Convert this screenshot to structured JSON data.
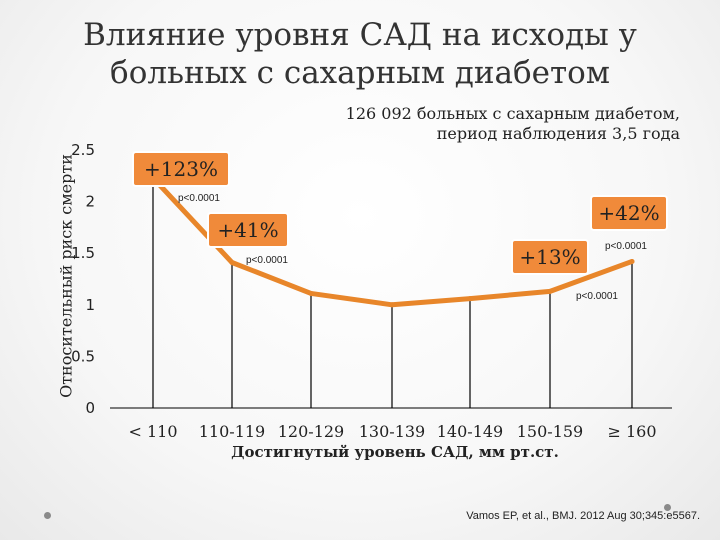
{
  "slide": {
    "title_line1": "Влияние уровня САД на исходы у",
    "title_line2": "больных с сахарным диабетом",
    "subtitle_line1": "126 092 больных с сахарным диабетом,",
    "subtitle_line2": "период наблюдения 3,5 года",
    "citation": "Vamos EP, et al., BMJ. 2012 Aug 30;345:e5567."
  },
  "chart_data": {
    "type": "line",
    "categories": [
      "< 110",
      "110-119",
      "120-129",
      "130-139",
      "140-149",
      "150-159",
      "≥ 160"
    ],
    "series": [
      {
        "values": [
          2.23,
          1.41,
          1.11,
          1.0,
          1.06,
          1.13,
          1.42
        ]
      }
    ],
    "xlabel": "Достигнутый уровень САД, мм рт.ст.",
    "ylabel": "Относительный риск смерти",
    "ylim": [
      0,
      2.5
    ],
    "yticks": [
      0,
      0.5,
      1,
      1.5,
      2,
      2.5
    ],
    "ytick_labels": [
      "0",
      "0.5",
      "1",
      "1.5",
      "2",
      "2.5"
    ],
    "drop_lines": true,
    "annotations": [
      {
        "category": "< 110",
        "text": "+123%",
        "p_value": "p<0.0001"
      },
      {
        "category": "110-119",
        "text": "+41%",
        "p_value": "p<0.0001"
      },
      {
        "category": "150-159",
        "text": "+13%",
        "p_value": "p<0.0001"
      },
      {
        "category": "≥ 160",
        "text": "+42%",
        "p_value": "p<0.0001"
      }
    ],
    "colors": {
      "line": "#e8862a",
      "badge_fill": "#f08a3a",
      "badge_border": "#ffffff",
      "drop_line": "#000000"
    }
  }
}
